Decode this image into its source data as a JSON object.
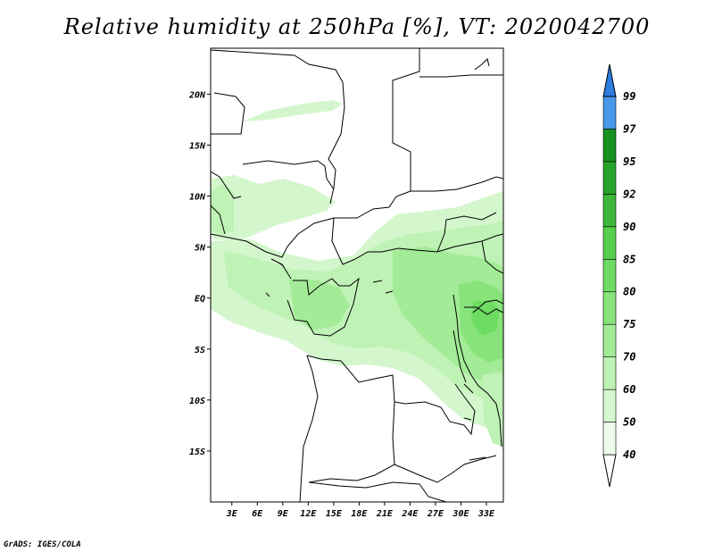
{
  "title": "Relative humidity at 250hPa [%], VT: 2020042700",
  "credit": "GrADS: IGES/COLA",
  "map": {
    "lon_range": [
      0.5,
      35
    ],
    "lat_range": [
      -20,
      24.5
    ],
    "lon_ticks": [
      "3E",
      "6E",
      "9E",
      "12E",
      "15E",
      "18E",
      "21E",
      "24E",
      "27E",
      "30E",
      "33E"
    ],
    "lat_ticks": [
      "20N",
      "15N",
      "10N",
      "5N",
      "EQ",
      "5S",
      "10S",
      "15S"
    ]
  },
  "colorbar": {
    "levels": [
      "40",
      "50",
      "60",
      "70",
      "75",
      "80",
      "85",
      "90",
      "92",
      "95",
      "97",
      "99"
    ],
    "colors": [
      "#edfbea",
      "#d4f6cd",
      "#bff2b5",
      "#a3eb97",
      "#87e37a",
      "#6edb63",
      "#57cf4d",
      "#3db83a",
      "#27a52a",
      "#15921f",
      "#4a98ea",
      "#2c7ce1",
      "#1c5fc8"
    ],
    "under_color": "#ffffff"
  }
}
